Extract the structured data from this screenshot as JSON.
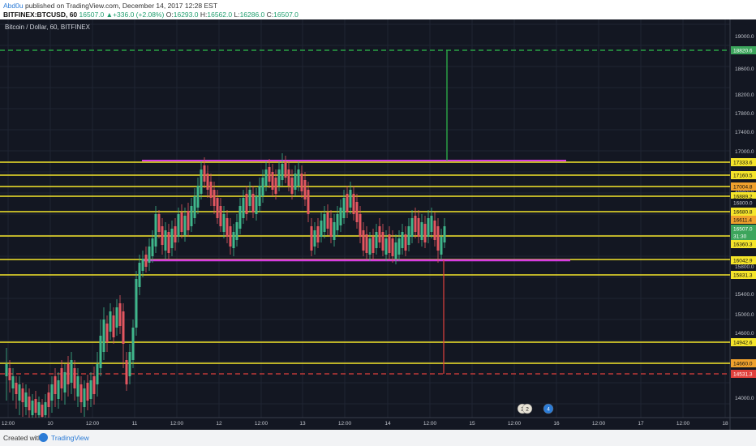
{
  "header": {
    "author": "Abd0u",
    "published_text": "published on TradingView.com, December 14, 2017 12:28 EST",
    "symbol": "BITFINEX:BTCUSD, 60",
    "price": "16507.0",
    "change": "+336.0 (+2.08%)",
    "o_label": "O:",
    "o_value": "16293.0",
    "h_label": "H:",
    "h_value": "16562.0",
    "l_label": "L:",
    "l_value": "16286.0",
    "c_label": "C:",
    "c_value": "16507.0"
  },
  "chart": {
    "title": "Bitcoin / Dollar, 60, BITFINEX",
    "price_axis": [
      "19000.0",
      "18600.0",
      "18200.0",
      "17800.0",
      "17400.0",
      "17000.0",
      "16600.0",
      "16200.0",
      "15800.0",
      "15400.0",
      "15000.0",
      "14600.0",
      "14200.0",
      "14000.0"
    ],
    "time_axis": [
      "12:00",
      "10",
      "12:00",
      "11",
      "12:00",
      "12",
      "12:00",
      "13",
      "12:00",
      "14",
      "12:00",
      "15",
      "12:00",
      "16",
      "12:00",
      "17",
      "12:00",
      "18"
    ],
    "price_tags": [
      {
        "text": "18820.6",
        "kind": "green"
      },
      {
        "text": "17333.6",
        "kind": "yellow"
      },
      {
        "text": "17160.5",
        "kind": "yellow"
      },
      {
        "text": "17004.8",
        "kind": "orange"
      },
      {
        "text": "16889.2",
        "kind": "yellow"
      },
      {
        "text": "16800.0",
        "kind": "plain"
      },
      {
        "text": "16680.8",
        "kind": "yellow"
      },
      {
        "text": "16611.4",
        "kind": "orange"
      },
      {
        "text": "16507.0",
        "kind": "green"
      },
      {
        "text": "31:30",
        "kind": "green"
      },
      {
        "text": "16360.3",
        "kind": "yellow"
      },
      {
        "text": "16042.9",
        "kind": "yellow"
      },
      {
        "text": "15831.3",
        "kind": "yellow"
      },
      {
        "text": "14942.6",
        "kind": "yellow"
      },
      {
        "text": "14660.0",
        "kind": "orange"
      },
      {
        "text": "14531.3",
        "kind": "red"
      }
    ],
    "markers": [
      "2",
      "2",
      "4"
    ]
  },
  "footer": {
    "created_with": "Created with",
    "brand": "TradingView"
  }
}
